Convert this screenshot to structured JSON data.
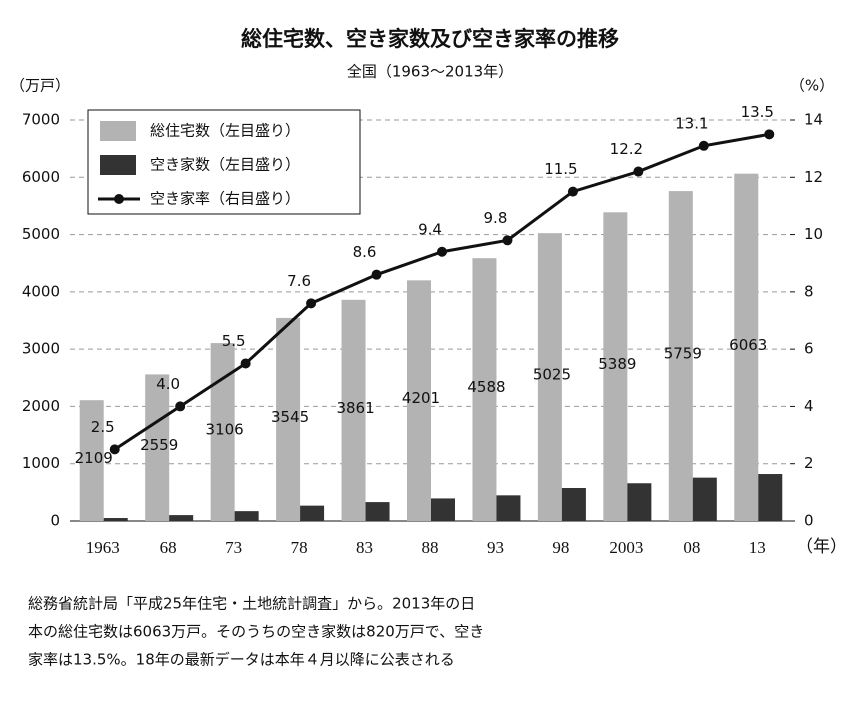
{
  "chart_data": {
    "type": "bar-line",
    "title": "総住宅数、空き家数及び空き家率の推移",
    "subtitle": "全国（1963〜2013年）",
    "y_unit": "（万戸）",
    "y2_unit": "（%）",
    "x_unit": "（年）",
    "categories": [
      "1963",
      "68",
      "73",
      "78",
      "83",
      "88",
      "93",
      "98",
      "2003",
      "08",
      "13"
    ],
    "series": [
      {
        "name": "総住宅数（左目盛り）",
        "color": "#b3b3b3",
        "kind": "bar",
        "values": [
          2109,
          2559,
          3106,
          3545,
          3861,
          4201,
          4588,
          5025,
          5389,
          5759,
          6063
        ]
      },
      {
        "name": "空き家数（左目盛り）",
        "color": "#333333",
        "kind": "bar",
        "values": [
          52,
          103,
          172,
          268,
          330,
          394,
          448,
          576,
          659,
          757,
          820
        ]
      },
      {
        "name": "空き家率（右目盛り）",
        "color": "#111111",
        "kind": "line",
        "axis": "y2",
        "values": [
          2.5,
          4.0,
          5.5,
          7.6,
          8.6,
          9.4,
          9.8,
          11.5,
          12.2,
          13.1,
          13.5
        ],
        "value_labels": [
          "2.5",
          "4.0",
          "5.5",
          "7.6",
          "8.6",
          "9.4",
          "9.8",
          "11.5",
          "12.2",
          "13.1",
          "13.5"
        ]
      }
    ],
    "ylim": [
      0,
      7000
    ],
    "yticks": [
      0,
      1000,
      2000,
      3000,
      4000,
      5000,
      6000,
      7000
    ],
    "y2lim": [
      0,
      14
    ],
    "y2ticks": [
      0,
      2,
      4,
      6,
      8,
      10,
      12,
      14
    ],
    "grid": true,
    "note": [
      "総務省統計局「平成25年住宅・土地統計調査」から。2013年の日",
      "本の総住宅数は6063万戸。そのうちの空き家数は820万戸で、空き",
      "家率は13.5%。18年の最新データは本年４月以降に公表される"
    ]
  }
}
